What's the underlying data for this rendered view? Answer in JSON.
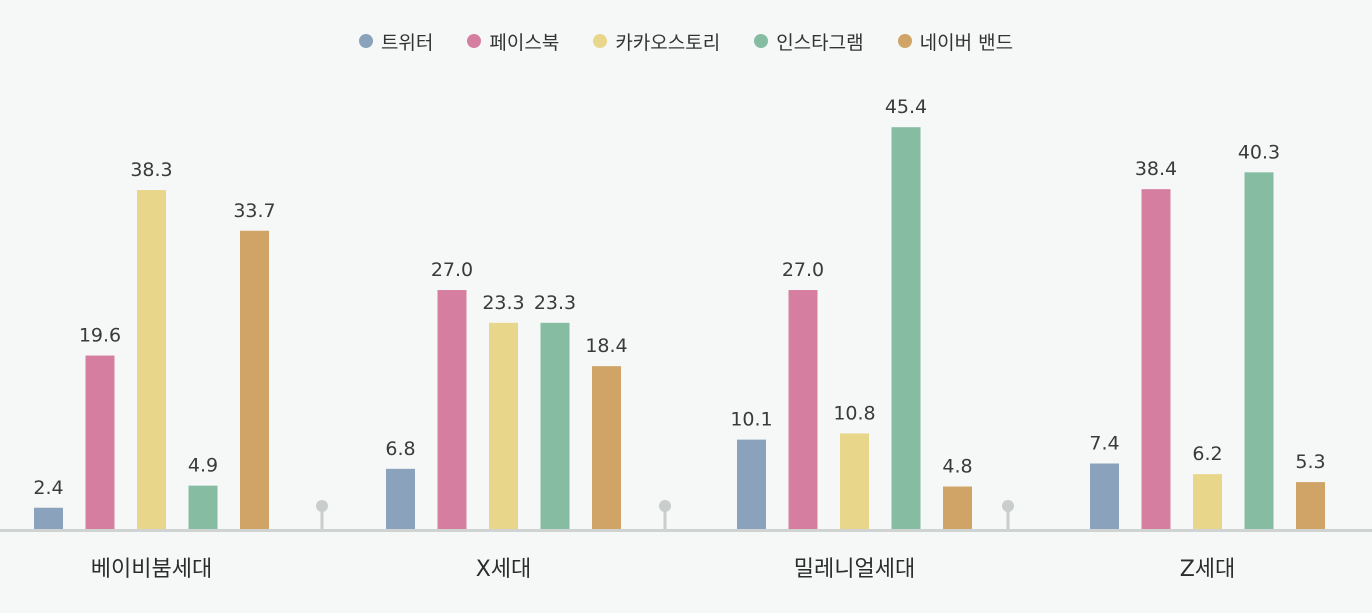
{
  "chart_data": {
    "type": "bar",
    "categories": [
      "베이비붐세대",
      "X세대",
      "밀레니얼세대",
      "Z세대"
    ],
    "series": [
      {
        "name": "트위터",
        "color": "#8aa2bb",
        "values": [
          2.4,
          6.8,
          10.1,
          7.4
        ]
      },
      {
        "name": "페이스북",
        "color": "#d67ea0",
        "values": [
          19.6,
          27.0,
          27.0,
          38.4
        ]
      },
      {
        "name": "카카오스토리",
        "color": "#e8d78a",
        "values": [
          38.3,
          23.3,
          10.8,
          6.2
        ]
      },
      {
        "name": "인스타그램",
        "color": "#86bca2",
        "values": [
          4.9,
          23.3,
          45.4,
          40.3
        ]
      },
      {
        "name": "네이버 밴드",
        "color": "#cfa466",
        "values": [
          33.7,
          18.4,
          4.8,
          5.3
        ]
      }
    ],
    "ylim": [
      0,
      50
    ],
    "grid": false,
    "legend_position": "top-center"
  }
}
